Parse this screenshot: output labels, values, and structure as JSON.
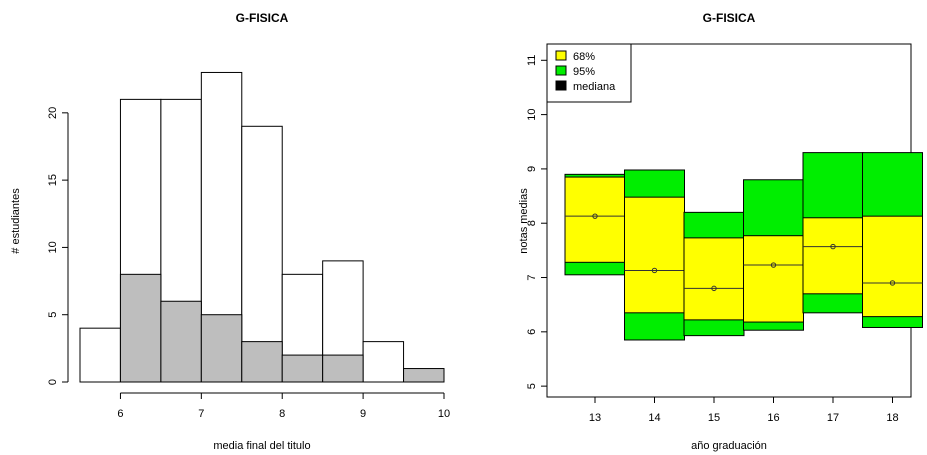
{
  "chart_data": [
    {
      "type": "histogram",
      "title": "G-FISICA",
      "xlabel": "media final del titulo",
      "ylabel": "# estudiantes",
      "xlim": [
        5.5,
        10
      ],
      "ylim": [
        0,
        24
      ],
      "x_ticks": [
        6,
        7,
        8,
        9,
        10
      ],
      "y_ticks": [
        0,
        5,
        10,
        15,
        20
      ],
      "grid": false,
      "bin_edges": [
        5.5,
        6,
        6.5,
        7,
        7.5,
        8,
        8.5,
        9,
        9.5,
        10
      ],
      "series": [
        {
          "values": [
            4,
            21,
            21,
            23,
            19,
            8,
            9,
            3,
            0
          ],
          "color": "#ffffff"
        },
        {
          "values": [
            0,
            8,
            6,
            5,
            3,
            2,
            2,
            0,
            1
          ],
          "color": "#bebebe"
        }
      ]
    },
    {
      "type": "box",
      "title": "G-FISICA",
      "xlabel": "año graduación",
      "ylabel": "notas medias",
      "ylim": [
        4.8,
        11.3
      ],
      "y_ticks": [
        5,
        6,
        7,
        8,
        9,
        10,
        11
      ],
      "grid": false,
      "categories": [
        "13",
        "14",
        "15",
        "16",
        "17",
        "18"
      ],
      "legend": {
        "position": "top-left",
        "items": [
          {
            "label": "68%",
            "color": "#ffff00"
          },
          {
            "label": "95%",
            "color": "#00ee00"
          },
          {
            "label": "mediana",
            "color": "#000000"
          }
        ]
      },
      "intervals_95": [
        [
          7.05,
          8.9
        ],
        [
          5.85,
          8.98
        ],
        [
          5.93,
          8.2
        ],
        [
          6.03,
          8.8
        ],
        [
          6.35,
          9.3
        ],
        [
          6.08,
          9.3
        ]
      ],
      "intervals_68": [
        [
          7.28,
          8.85
        ],
        [
          6.35,
          8.48
        ],
        [
          6.22,
          7.73
        ],
        [
          6.18,
          7.77
        ],
        [
          6.7,
          8.1
        ],
        [
          6.28,
          8.13
        ]
      ],
      "medians": [
        8.13,
        7.13,
        6.8,
        7.23,
        7.57,
        6.9
      ]
    }
  ]
}
